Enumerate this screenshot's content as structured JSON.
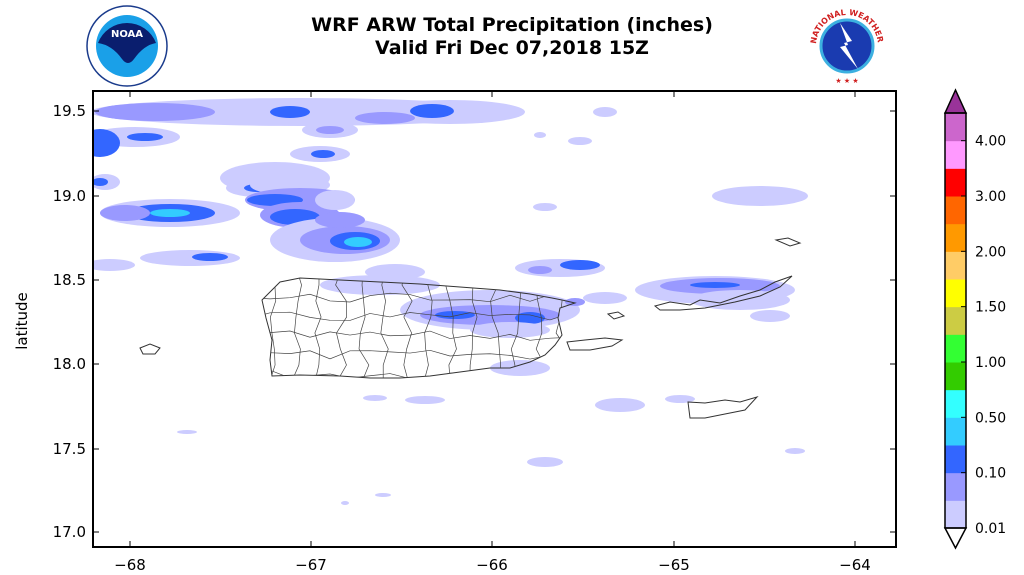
{
  "header": {
    "title": "WRF ARW Total Precipitation (inches)",
    "subtitle": "Valid Fri Dec 07,2018 15Z",
    "left_logo": {
      "name": "noaa-logo",
      "text": "NOAA"
    },
    "right_logo": {
      "name": "nws-logo",
      "text": "NATIONAL WEATHER SERVICE"
    }
  },
  "map": {
    "ylabel": "latitude",
    "x_ticks": [
      "−68",
      "−67",
      "−66",
      "−65",
      "−64"
    ],
    "y_ticks": [
      "19.5",
      "19.0",
      "18.5",
      "18.0",
      "17.5",
      "17.0"
    ],
    "lon_range": [
      -68.2,
      -63.77
    ],
    "lat_range": [
      16.91,
      19.62
    ],
    "region": "Puerto Rico and Virgin Islands"
  },
  "colorbar": {
    "tick_labels": [
      "0.01",
      "0.10",
      "0.50",
      "1.00",
      "1.50",
      "2.00",
      "3.00",
      "4.00"
    ],
    "colors": [
      "#ccccff",
      "#9999ff",
      "#3366ff",
      "#33ccff",
      "#33ffff",
      "#33cc00",
      "#33ff33",
      "#cccc44",
      "#ffff00",
      "#ffcc66",
      "#ff9900",
      "#ff6600",
      "#ff0000",
      "#ff99ff",
      "#cc66cc"
    ],
    "over_color": "#993399",
    "under_color": "#ffffff",
    "extend": "both"
  }
}
